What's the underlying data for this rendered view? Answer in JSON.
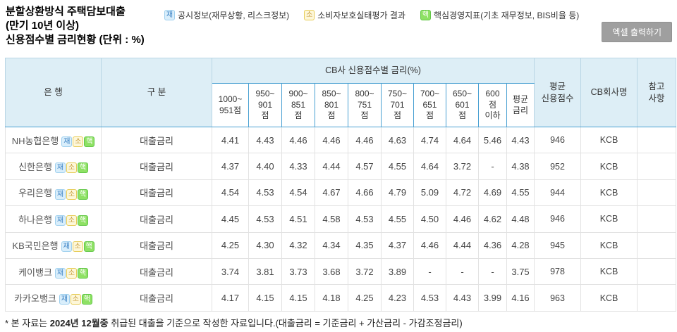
{
  "page": {
    "title_lines": [
      "분할상환방식 주택담보대출",
      "(만기 10년 이상)",
      "신용점수별 금리현황 (단위 : %)"
    ],
    "excel_button_label": "엑셀 출력하기"
  },
  "colors": {
    "header_bg": "#ddeef6",
    "header_accent_border": "#49a0d2",
    "header_light_border": "#b9d6e5",
    "body_border": "#e2e2e2",
    "button_bg": "#9f9f9f"
  },
  "badges": {
    "jae": {
      "char": "재",
      "bg": "#d9eefb",
      "border": "#9fd0ee",
      "color": "#3b82c4"
    },
    "so": {
      "char": "소",
      "bg": "#fdf7d9",
      "border": "#e6cb54",
      "color": "#c79b3b"
    },
    "haek": {
      "char": "핵",
      "bg": "#8ee164",
      "border": "#63c748",
      "color": "#ffffff"
    }
  },
  "legend": [
    {
      "badge": "jae",
      "label": "공시정보(재무상황, 리스크정보)"
    },
    {
      "badge": "so",
      "label": "소비자보호실태평가 결과"
    },
    {
      "badge": "haek",
      "label": "핵심경영지표(기초 재무정보, BIS비율 등)"
    }
  ],
  "table": {
    "headers": {
      "bank": "은 행",
      "category": "구 분",
      "cb_group": "CB사 신용점수별 금리(%)",
      "score_bands": [
        "1000~\n951점",
        "950~\n901\n점",
        "900~\n851\n점",
        "850~\n801\n점",
        "800~\n751\n점",
        "750~\n701\n점",
        "700~\n651\n점",
        "650~\n601\n점",
        "600\n점\n이하",
        "평균\n금리"
      ],
      "avg_score": "평균\n신용점수",
      "cb_company": "CB회사명",
      "note": "참고\n사항"
    },
    "rows": [
      {
        "bank": "NH농협은행",
        "badges": [
          "jae",
          "so",
          "haek"
        ],
        "category": "대출금리",
        "rates": [
          "4.41",
          "4.43",
          "4.46",
          "4.46",
          "4.46",
          "4.63",
          "4.74",
          "4.64",
          "5.46",
          "4.43"
        ],
        "avg_score": "946",
        "cb_company": "KCB",
        "note": ""
      },
      {
        "bank": "신한은행",
        "badges": [
          "jae",
          "so",
          "haek"
        ],
        "category": "대출금리",
        "rates": [
          "4.37",
          "4.40",
          "4.33",
          "4.44",
          "4.57",
          "4.55",
          "4.64",
          "3.72",
          "-",
          "4.38"
        ],
        "avg_score": "952",
        "cb_company": "KCB",
        "note": ""
      },
      {
        "bank": "우리은행",
        "badges": [
          "jae",
          "so",
          "haek"
        ],
        "category": "대출금리",
        "rates": [
          "4.54",
          "4.53",
          "4.54",
          "4.67",
          "4.66",
          "4.79",
          "5.09",
          "4.72",
          "4.69",
          "4.55"
        ],
        "avg_score": "944",
        "cb_company": "KCB",
        "note": ""
      },
      {
        "bank": "하나은행",
        "badges": [
          "jae",
          "so",
          "haek"
        ],
        "category": "대출금리",
        "rates": [
          "4.45",
          "4.53",
          "4.51",
          "4.58",
          "4.53",
          "4.55",
          "4.50",
          "4.46",
          "4.62",
          "4.48"
        ],
        "avg_score": "946",
        "cb_company": "KCB",
        "note": ""
      },
      {
        "bank": "KB국민은행",
        "badges": [
          "jae",
          "so",
          "haek"
        ],
        "category": "대출금리",
        "rates": [
          "4.25",
          "4.30",
          "4.32",
          "4.34",
          "4.35",
          "4.37",
          "4.46",
          "4.44",
          "4.36",
          "4.28"
        ],
        "avg_score": "945",
        "cb_company": "KCB",
        "note": ""
      },
      {
        "bank": "케이뱅크",
        "badges": [
          "jae",
          "so",
          "haek"
        ],
        "category": "대출금리",
        "rates": [
          "3.74",
          "3.81",
          "3.73",
          "3.68",
          "3.72",
          "3.89",
          "-",
          "-",
          "-",
          "3.75"
        ],
        "avg_score": "978",
        "cb_company": "KCB",
        "note": ""
      },
      {
        "bank": "카카오뱅크",
        "badges": [
          "jae",
          "so",
          "haek"
        ],
        "category": "대출금리",
        "rates": [
          "4.17",
          "4.15",
          "4.15",
          "4.18",
          "4.25",
          "4.23",
          "4.53",
          "4.43",
          "3.99",
          "4.16"
        ],
        "avg_score": "963",
        "cb_company": "KCB",
        "note": ""
      }
    ]
  },
  "footnote": {
    "prefix": "* 본 자료는 ",
    "bold": "2024년 12월중",
    "suffix": " 취급된 대출을 기준으로 작성한 자료입니다.(대출금리 = 기준금리 + 가산금리 - 가감조정금리)"
  }
}
